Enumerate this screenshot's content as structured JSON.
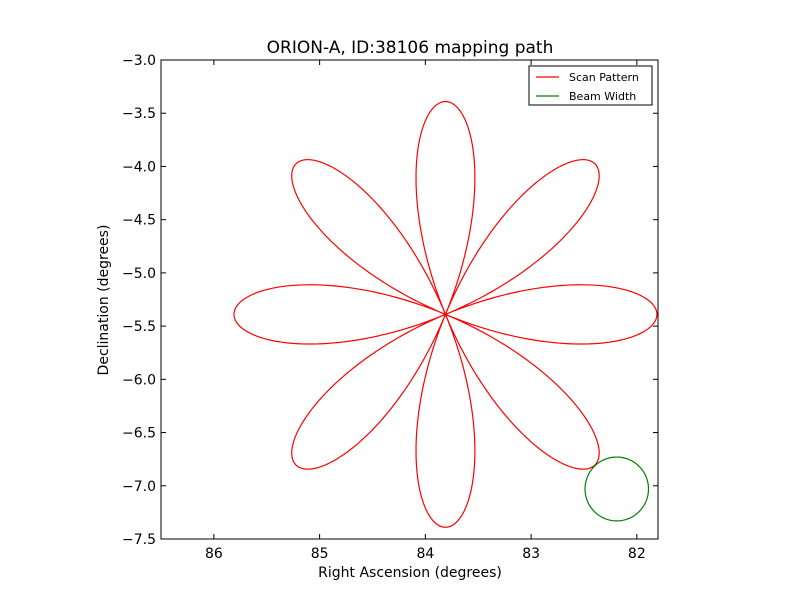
{
  "chart_data": {
    "type": "line",
    "title": "ORION-A, ID:38106 mapping path",
    "xlabel": "Right Ascension (degrees)",
    "ylabel": "Declination (degrees)",
    "xlim": [
      86.5,
      81.8
    ],
    "ylim": [
      -7.5,
      -3.0
    ],
    "x_ticks": [
      86,
      85,
      84,
      83,
      82
    ],
    "x_tick_labels": [
      "86",
      "85",
      "84",
      "83",
      "82"
    ],
    "y_ticks": [
      -3.0,
      -3.5,
      -4.0,
      -4.5,
      -5.0,
      -5.5,
      -6.0,
      -6.5,
      -7.0,
      -7.5
    ],
    "y_tick_labels": [
      "−3.0",
      "−3.5",
      "−4.0",
      "−4.5",
      "−5.0",
      "−5.5",
      "−6.0",
      "−6.5",
      "−7.0",
      "−7.5"
    ],
    "grid": false,
    "legend_position": "top-right",
    "series": [
      {
        "name": "Scan Pattern",
        "color": "#ff0000",
        "kind": "rose",
        "center": [
          83.81,
          -5.39
        ],
        "amplitude": 2.0,
        "petals": 8
      },
      {
        "name": "Beam Width",
        "color": "#008000",
        "kind": "circle",
        "center": [
          82.19,
          -7.03
        ],
        "radius": 0.3
      }
    ]
  }
}
